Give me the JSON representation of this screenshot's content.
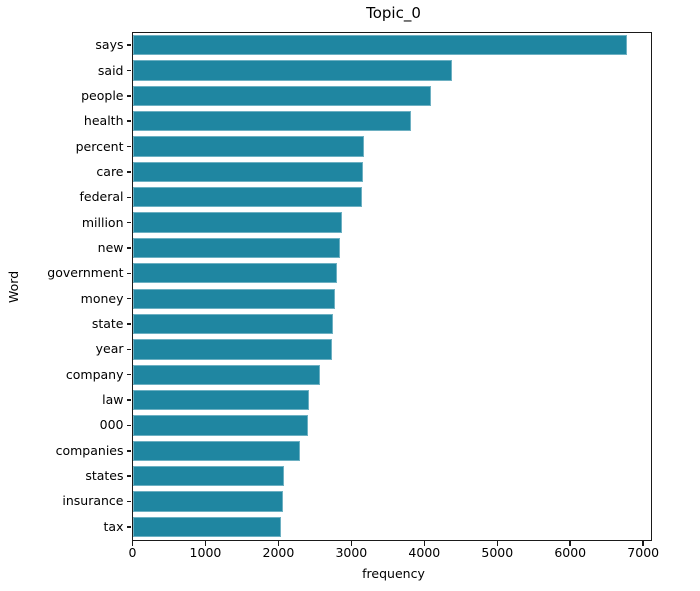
{
  "chart_data": {
    "type": "bar",
    "orientation": "horizontal",
    "title": "Topic_0",
    "xlabel": "frequency",
    "ylabel": "Word",
    "categories": [
      "says",
      "said",
      "people",
      "health",
      "percent",
      "care",
      "federal",
      "million",
      "new",
      "government",
      "money",
      "state",
      "year",
      "company",
      "law",
      "000",
      "companies",
      "states",
      "insurance",
      "tax"
    ],
    "values": [
      6780,
      4380,
      4090,
      3820,
      3170,
      3160,
      3150,
      2870,
      2840,
      2800,
      2770,
      2750,
      2740,
      2570,
      2420,
      2410,
      2300,
      2080,
      2060,
      2040
    ],
    "xlim": [
      0,
      7100
    ],
    "x_ticks": [
      0,
      1000,
      2000,
      3000,
      4000,
      5000,
      6000,
      7000
    ],
    "bar_color": "#1f86a1",
    "spine_color": "#1a1a1a",
    "grid": false,
    "legend": null
  }
}
